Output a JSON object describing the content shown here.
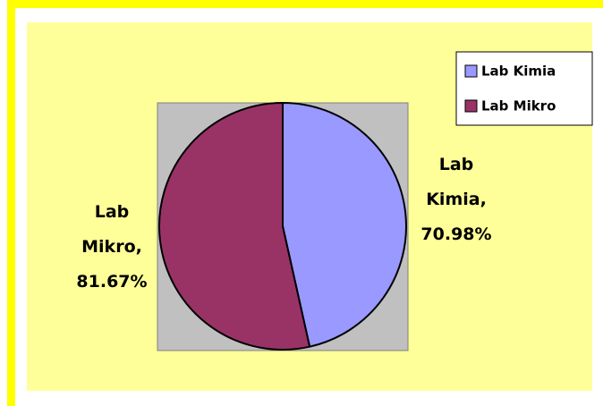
{
  "chart_data": {
    "type": "pie",
    "categories": [
      "Lab Kimia",
      "Lab Mikro"
    ],
    "values": [
      70.98,
      81.67
    ],
    "value_labels": [
      "Lab Kimia, 70.98%",
      "Lab Mikro, 81.67%"
    ],
    "colors": [
      "#9999ff",
      "#993366"
    ],
    "legend": "top-right"
  }
}
